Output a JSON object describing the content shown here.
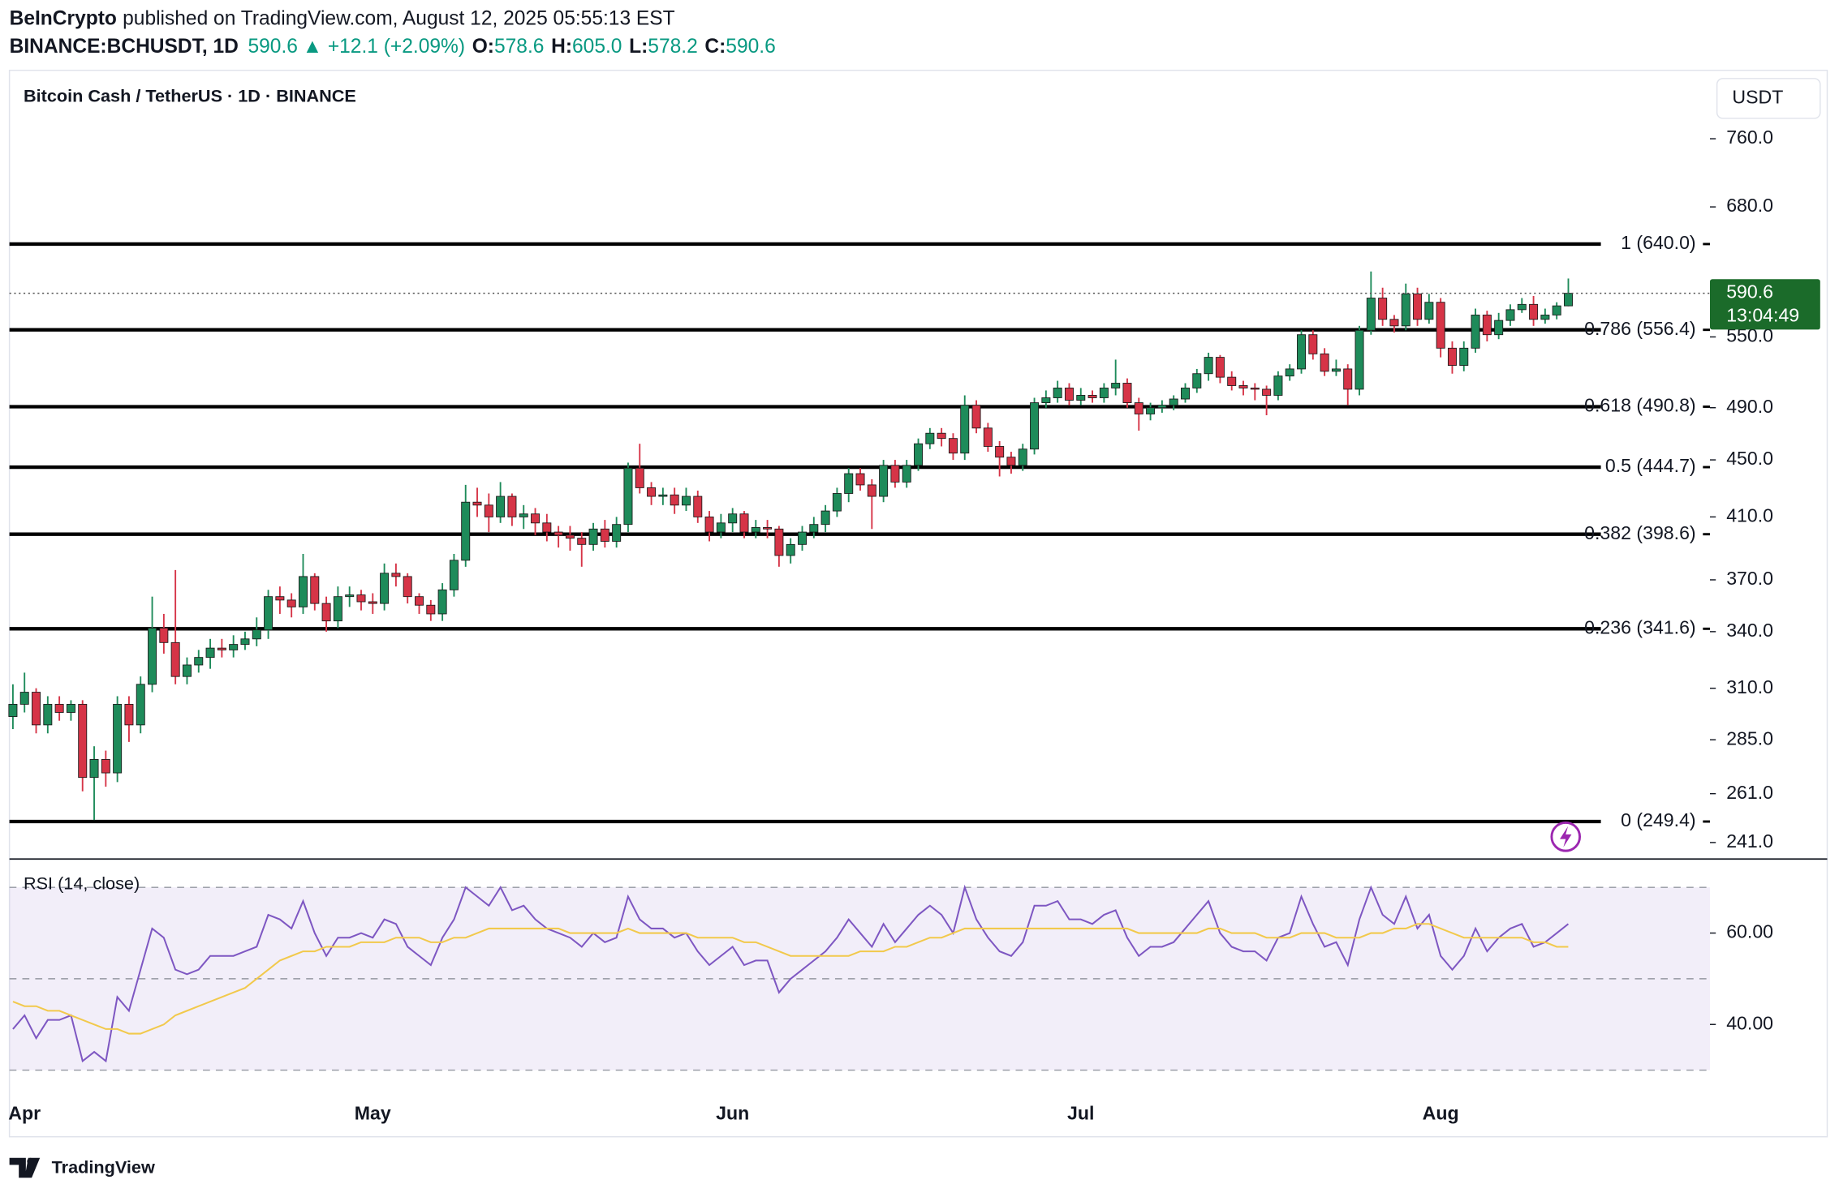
{
  "header": {
    "author": "BeInCrypto",
    "published": "published on TradingView.com, August 12, 2025 05:55:13 EST",
    "symbol": "BINANCE:BCHUSDT, 1D",
    "last": "590.6",
    "change": "▲ +12.1 (+2.09%)",
    "ohlc": [
      {
        "label": "O:",
        "value": "578.6"
      },
      {
        "label": "H:",
        "value": "605.0"
      },
      {
        "label": "L:",
        "value": "578.2"
      },
      {
        "label": "C:",
        "value": "590.6"
      }
    ]
  },
  "footer": {
    "logo": "TradingView"
  },
  "chart_data": [
    {
      "type": "candlestick",
      "title": "Bitcoin Cash / TetherUS · 1D · BINANCE",
      "currency": "USDT",
      "up_color": "#1e8b5a",
      "down_color": "#d63447",
      "log_scale": true,
      "xlim": [
        -0.3,
        146.2
      ],
      "xticks": [
        {
          "value": 1,
          "label": "Apr"
        },
        {
          "value": 31,
          "label": "May"
        },
        {
          "value": 62,
          "label": "Jun"
        },
        {
          "value": 92,
          "label": "Jul"
        },
        {
          "value": 123,
          "label": "Aug"
        }
      ],
      "ylim": [
        234.6,
        849.8
      ],
      "yticks": [
        {
          "value": 241,
          "label": "241.0"
        },
        {
          "value": 261,
          "label": "261.0"
        },
        {
          "value": 285,
          "label": "285.0"
        },
        {
          "value": 310,
          "label": "310.0"
        },
        {
          "value": 340,
          "label": "340.0"
        },
        {
          "value": 370,
          "label": "370.0"
        },
        {
          "value": 410,
          "label": "410.0"
        },
        {
          "value": 450,
          "label": "450.0"
        },
        {
          "value": 490,
          "label": "490.0"
        },
        {
          "value": 550,
          "label": "550.0"
        },
        {
          "value": 680,
          "label": "680.0"
        },
        {
          "value": 760,
          "label": "760.0"
        }
      ],
      "price_line": 590.6,
      "countdown": "13:04:49",
      "price_color": "#1b6b2a",
      "fib_levels": [
        {
          "value": 640.0,
          "label": "1 (640.0)"
        },
        {
          "value": 556.4,
          "label": "0.786 (556.4)"
        },
        {
          "value": 490.8,
          "label": "0.618 (490.8)"
        },
        {
          "value": 444.7,
          "label": "0.5 (444.7)"
        },
        {
          "value": 398.6,
          "label": "0.382 (398.6)"
        },
        {
          "value": 341.6,
          "label": "0.236 (341.6)"
        },
        {
          "value": 249.4,
          "label": "0 (249.4)"
        }
      ],
      "ohlc": [
        [
          296,
          312,
          290,
          302
        ],
        [
          302,
          318,
          298,
          308
        ],
        [
          308,
          310,
          288,
          292
        ],
        [
          292,
          306,
          288,
          302
        ],
        [
          302,
          306,
          294,
          298
        ],
        [
          298,
          304,
          294,
          302
        ],
        [
          302,
          304,
          262,
          268
        ],
        [
          268,
          282,
          250,
          276
        ],
        [
          276,
          280,
          264,
          270
        ],
        [
          270,
          306,
          266,
          302
        ],
        [
          302,
          306,
          284,
          292
        ],
        [
          292,
          316,
          288,
          312
        ],
        [
          312,
          360,
          308,
          342
        ],
        [
          342,
          350,
          328,
          334
        ],
        [
          334,
          376,
          312,
          316
        ],
        [
          316,
          326,
          312,
          322
        ],
        [
          322,
          330,
          318,
          326
        ],
        [
          326,
          336,
          320,
          331
        ],
        [
          331,
          336,
          326,
          330
        ],
        [
          330,
          338,
          326,
          333
        ],
        [
          333,
          340,
          330,
          336
        ],
        [
          336,
          348,
          332,
          341
        ],
        [
          341,
          364,
          336,
          360
        ],
        [
          360,
          366,
          350,
          358
        ],
        [
          358,
          362,
          348,
          354
        ],
        [
          354,
          386,
          350,
          372
        ],
        [
          372,
          374,
          352,
          356
        ],
        [
          356,
          360,
          340,
          346
        ],
        [
          346,
          366,
          342,
          360
        ],
        [
          360,
          366,
          354,
          361
        ],
        [
          361,
          364,
          352,
          357
        ],
        [
          357,
          362,
          350,
          356
        ],
        [
          356,
          380,
          352,
          374
        ],
        [
          374,
          380,
          366,
          372
        ],
        [
          372,
          374,
          356,
          360
        ],
        [
          360,
          362,
          350,
          355
        ],
        [
          355,
          358,
          346,
          350
        ],
        [
          350,
          368,
          346,
          364
        ],
        [
          364,
          386,
          360,
          382
        ],
        [
          382,
          432,
          378,
          420
        ],
        [
          420,
          430,
          410,
          418
        ],
        [
          418,
          426,
          400,
          410
        ],
        [
          410,
          434,
          406,
          424
        ],
        [
          424,
          426,
          404,
          410
        ],
        [
          410,
          418,
          402,
          412
        ],
        [
          412,
          416,
          398,
          406
        ],
        [
          406,
          412,
          394,
          400
        ],
        [
          400,
          404,
          390,
          398
        ],
        [
          398,
          404,
          388,
          396
        ],
        [
          396,
          400,
          378,
          392
        ],
        [
          392,
          406,
          388,
          402
        ],
        [
          402,
          408,
          390,
          394
        ],
        [
          394,
          410,
          390,
          405
        ],
        [
          405,
          448,
          400,
          444
        ],
        [
          444,
          462,
          426,
          430
        ],
        [
          430,
          434,
          418,
          424
        ],
        [
          424,
          430,
          418,
          425
        ],
        [
          425,
          430,
          412,
          418
        ],
        [
          418,
          430,
          414,
          424
        ],
        [
          424,
          428,
          406,
          410
        ],
        [
          410,
          414,
          394,
          400
        ],
        [
          400,
          412,
          396,
          406
        ],
        [
          406,
          416,
          400,
          412
        ],
        [
          412,
          414,
          396,
          400
        ],
        [
          400,
          408,
          396,
          403
        ],
        [
          403,
          408,
          396,
          402
        ],
        [
          402,
          404,
          378,
          385
        ],
        [
          385,
          396,
          380,
          392
        ],
        [
          392,
          404,
          388,
          400
        ],
        [
          400,
          410,
          396,
          405
        ],
        [
          405,
          418,
          400,
          414
        ],
        [
          414,
          430,
          410,
          426
        ],
        [
          426,
          444,
          420,
          440
        ],
        [
          440,
          444,
          428,
          432
        ],
        [
          432,
          436,
          402,
          424
        ],
        [
          424,
          450,
          420,
          446
        ],
        [
          446,
          450,
          430,
          434
        ],
        [
          434,
          450,
          430,
          446
        ],
        [
          446,
          466,
          442,
          462
        ],
        [
          462,
          474,
          458,
          470
        ],
        [
          470,
          474,
          460,
          466
        ],
        [
          466,
          470,
          450,
          455
        ],
        [
          455,
          500,
          450,
          492
        ],
        [
          492,
          496,
          470,
          474
        ],
        [
          474,
          478,
          456,
          460
        ],
        [
          460,
          464,
          438,
          452
        ],
        [
          452,
          456,
          440,
          446
        ],
        [
          446,
          462,
          442,
          458
        ],
        [
          458,
          498,
          454,
          494
        ],
        [
          494,
          504,
          490,
          498
        ],
        [
          498,
          512,
          494,
          506
        ],
        [
          506,
          510,
          492,
          496
        ],
        [
          496,
          506,
          492,
          500
        ],
        [
          500,
          504,
          494,
          498
        ],
        [
          498,
          510,
          494,
          506
        ],
        [
          506,
          530,
          500,
          510
        ],
        [
          510,
          514,
          490,
          494
        ],
        [
          494,
          498,
          472,
          485
        ],
        [
          485,
          494,
          480,
          490
        ],
        [
          490,
          496,
          486,
          492
        ],
        [
          492,
          500,
          488,
          497
        ],
        [
          497,
          510,
          494,
          506
        ],
        [
          506,
          522,
          502,
          518
        ],
        [
          518,
          536,
          512,
          532
        ],
        [
          532,
          534,
          510,
          515
        ],
        [
          515,
          520,
          504,
          508
        ],
        [
          508,
          512,
          500,
          506
        ],
        [
          506,
          510,
          496,
          505
        ],
        [
          505,
          508,
          484,
          500
        ],
        [
          500,
          520,
          496,
          516
        ],
        [
          516,
          526,
          512,
          522
        ],
        [
          522,
          556,
          518,
          552
        ],
        [
          552,
          556,
          530,
          535
        ],
        [
          535,
          540,
          516,
          520
        ],
        [
          520,
          530,
          516,
          522
        ],
        [
          522,
          526,
          492,
          505
        ],
        [
          505,
          560,
          500,
          556
        ],
        [
          556,
          612,
          552,
          586
        ],
        [
          586,
          596,
          560,
          566
        ],
        [
          566,
          570,
          554,
          560
        ],
        [
          560,
          600,
          556,
          590
        ],
        [
          590,
          596,
          560,
          566
        ],
        [
          566,
          590,
          562,
          582
        ],
        [
          582,
          586,
          532,
          540
        ],
        [
          540,
          546,
          518,
          525
        ],
        [
          525,
          546,
          520,
          540
        ],
        [
          540,
          576,
          536,
          570
        ],
        [
          570,
          574,
          546,
          552
        ],
        [
          552,
          572,
          548,
          565
        ],
        [
          565,
          580,
          560,
          575
        ],
        [
          575,
          586,
          572,
          580
        ],
        [
          580,
          588,
          560,
          566
        ],
        [
          566,
          576,
          562,
          570
        ],
        [
          570,
          582,
          566,
          578.6
        ],
        [
          578.6,
          605,
          578.2,
          590.6
        ]
      ]
    },
    {
      "type": "line",
      "title": "RSI (14, close)",
      "xlim": [
        -0.3,
        146.2
      ],
      "ylim": [
        24.4,
        76.2
      ],
      "yticks": [
        {
          "value": 40,
          "label": "40.00"
        },
        {
          "value": 60,
          "label": "60.00"
        }
      ],
      "bands": [
        70,
        50,
        30
      ],
      "band_color": "#7e57c2",
      "series": [
        {
          "color": "#7e57c2",
          "values": [
            39,
            42,
            37,
            41,
            41,
            42,
            32,
            34,
            32,
            46,
            43,
            52,
            61,
            59,
            52,
            51,
            52,
            55,
            55,
            55,
            56,
            57,
            64,
            63,
            61,
            67,
            60,
            55,
            59,
            59,
            60,
            59,
            63,
            62,
            57,
            55,
            53,
            59,
            63,
            70,
            68,
            66,
            70,
            65,
            66,
            63,
            61,
            60,
            59,
            57,
            60,
            58,
            59,
            68,
            63,
            61,
            61,
            59,
            60,
            56,
            53,
            55,
            57,
            53,
            54,
            54,
            47,
            50,
            52,
            54,
            56,
            59,
            63,
            60,
            57,
            62,
            58,
            61,
            64,
            66,
            64,
            60,
            70,
            63,
            59,
            56,
            55,
            58,
            66,
            66,
            67,
            63,
            63,
            62,
            64,
            65,
            59,
            55,
            57,
            57,
            58,
            61,
            64,
            67,
            60,
            57,
            56,
            56,
            54,
            59,
            60,
            68,
            62,
            57,
            58,
            53,
            63,
            70,
            64,
            62,
            68,
            61,
            64,
            55,
            52,
            55,
            61,
            56,
            59,
            61,
            62,
            57,
            58,
            60,
            62
          ]
        },
        {
          "color": "#f2c94c",
          "values": [
            45,
            44,
            44,
            43,
            43,
            42,
            41,
            40,
            39,
            39,
            38,
            38,
            39,
            40,
            42,
            43,
            44,
            45,
            46,
            47,
            48,
            50,
            52,
            54,
            55,
            56,
            56,
            57,
            57,
            57,
            58,
            58,
            58,
            59,
            59,
            59,
            58,
            58,
            59,
            59,
            60,
            61,
            61,
            61,
            61,
            61,
            61,
            61,
            60,
            60,
            60,
            60,
            60,
            61,
            60,
            60,
            60,
            60,
            60,
            59,
            59,
            59,
            59,
            58,
            58,
            57,
            56,
            55,
            55,
            55,
            55,
            55,
            55,
            56,
            56,
            56,
            57,
            57,
            58,
            59,
            59,
            60,
            61,
            61,
            61,
            61,
            61,
            61,
            61,
            61,
            61,
            61,
            61,
            61,
            61,
            61,
            61,
            60,
            60,
            60,
            60,
            60,
            60,
            61,
            61,
            60,
            60,
            60,
            59,
            59,
            59,
            60,
            60,
            60,
            59,
            59,
            59,
            60,
            60,
            61,
            61,
            62,
            62,
            61,
            60,
            59,
            59,
            59,
            59,
            59,
            59,
            58,
            58,
            57,
            57
          ]
        }
      ]
    }
  ]
}
